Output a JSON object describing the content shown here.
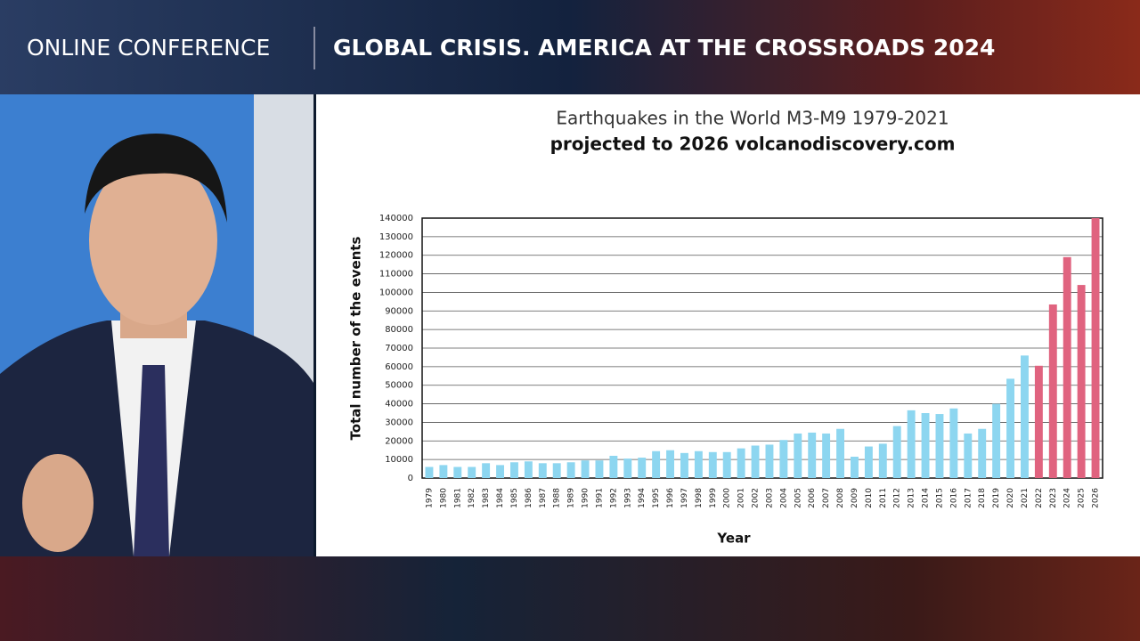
{
  "header": {
    "left": "ONLINE CONFERENCE",
    "right": "GLOBAL CRISIS. AMERICA AT THE CROSSROADS 2024"
  },
  "chart_data": {
    "type": "bar",
    "title": "Earthquakes in the World M3-M9 1979-2021",
    "subtitle": "projected to 2026 volcanodiscovery.com",
    "x_label": "Year",
    "y_label": "Total number of the events",
    "categories": [
      "1979",
      "1980",
      "1981",
      "1982",
      "1983",
      "1984",
      "1985",
      "1986",
      "1987",
      "1988",
      "1989",
      "1990",
      "1991",
      "1992",
      "1993",
      "1994",
      "1995",
      "1996",
      "1997",
      "1998",
      "1999",
      "2000",
      "2001",
      "2002",
      "2003",
      "2004",
      "2005",
      "2006",
      "2007",
      "2008",
      "2009",
      "2010",
      "2011",
      "2012",
      "2013",
      "2014",
      "2015",
      "2016",
      "2017",
      "2018",
      "2019",
      "2020",
      "2021",
      "2022",
      "2023",
      "2024",
      "2025",
      "2026"
    ],
    "values": [
      6000,
      7000,
      6000,
      6000,
      8000,
      7000,
      8500,
      9000,
      8000,
      8000,
      8500,
      9500,
      9500,
      12000,
      10500,
      11000,
      14500,
      15000,
      13500,
      14500,
      14000,
      14000,
      16000,
      17500,
      18000,
      20500,
      24000,
      24500,
      24000,
      26500,
      11500,
      17000,
      18500,
      28000,
      36500,
      35000,
      34500,
      37500,
      24000,
      26500,
      40000,
      53500,
      66000,
      60500,
      93500,
      119000,
      104000,
      140000
    ],
    "colors": [
      "#8dd6f0",
      "#8dd6f0",
      "#8dd6f0",
      "#8dd6f0",
      "#8dd6f0",
      "#8dd6f0",
      "#8dd6f0",
      "#8dd6f0",
      "#8dd6f0",
      "#8dd6f0",
      "#8dd6f0",
      "#8dd6f0",
      "#8dd6f0",
      "#8dd6f0",
      "#8dd6f0",
      "#8dd6f0",
      "#8dd6f0",
      "#8dd6f0",
      "#8dd6f0",
      "#8dd6f0",
      "#8dd6f0",
      "#8dd6f0",
      "#8dd6f0",
      "#8dd6f0",
      "#8dd6f0",
      "#8dd6f0",
      "#8dd6f0",
      "#8dd6f0",
      "#8dd6f0",
      "#8dd6f0",
      "#8dd6f0",
      "#8dd6f0",
      "#8dd6f0",
      "#8dd6f0",
      "#8dd6f0",
      "#8dd6f0",
      "#8dd6f0",
      "#8dd6f0",
      "#8dd6f0",
      "#8dd6f0",
      "#8dd6f0",
      "#8dd6f0",
      "#8dd6f0",
      "#e0637f",
      "#e0637f",
      "#e0637f",
      "#e0637f",
      "#e0637f"
    ],
    "ylim": [
      0,
      140000
    ],
    "yticks": [
      0,
      10000,
      20000,
      30000,
      40000,
      50000,
      60000,
      70000,
      80000,
      90000,
      100000,
      110000,
      120000,
      130000,
      140000
    ],
    "grid": true
  }
}
